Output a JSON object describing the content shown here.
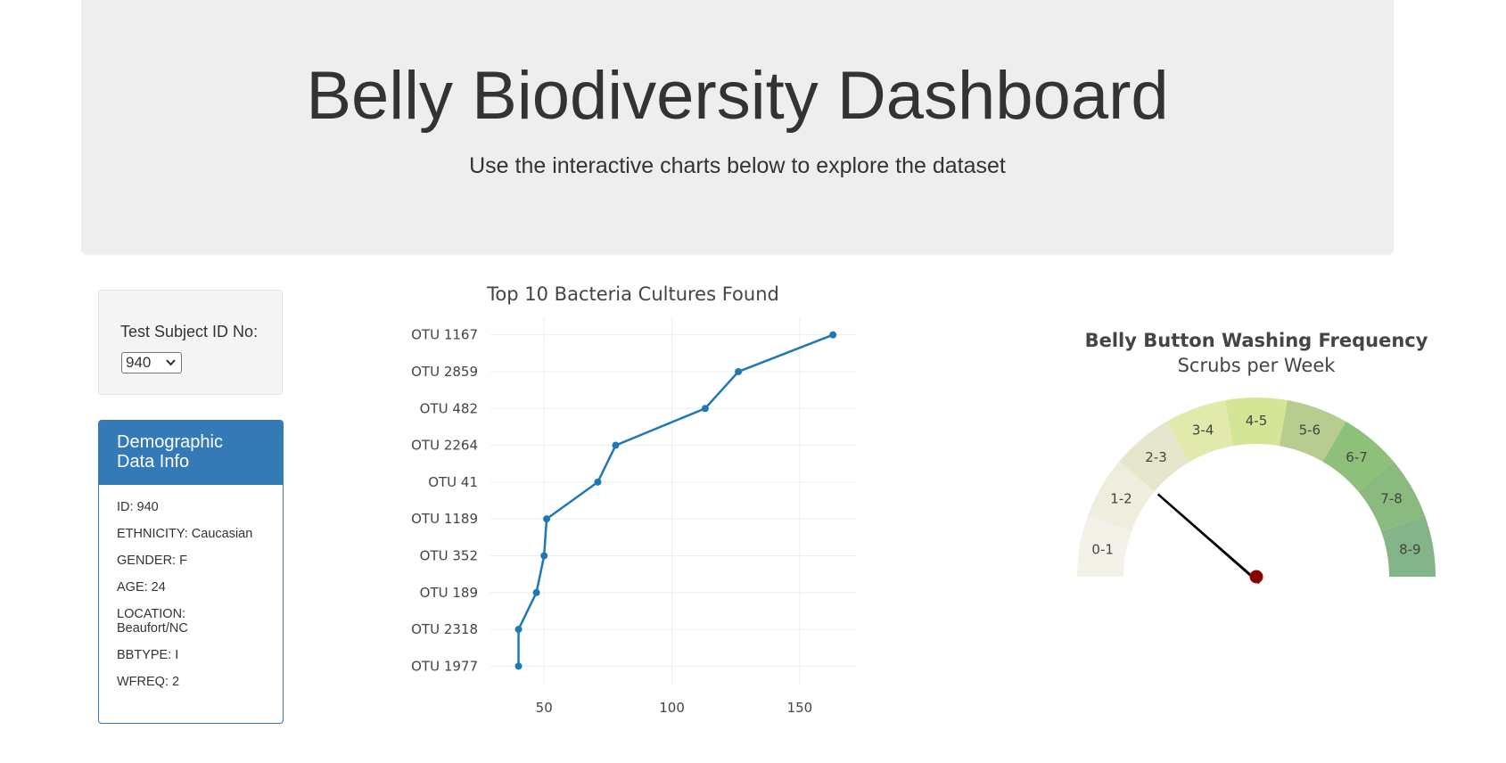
{
  "header": {
    "title": "Belly Biodiversity Dashboard",
    "subtitle": "Use the interactive charts below to explore the dataset"
  },
  "selector": {
    "label": "Test Subject ID No:",
    "selected_value": "940"
  },
  "demographics": {
    "title": "Demographic Data Info",
    "rows": [
      "ID: 940",
      "ETHNICITY: Caucasian",
      "GENDER: F",
      "AGE: 24",
      "LOCATION: Beaufort/NC",
      "BBTYPE: I",
      "WFREQ: 2"
    ]
  },
  "colors": {
    "accent": "#337ab7",
    "series": "#1f77b4"
  },
  "chart_data": [
    {
      "type": "line",
      "title": "Top 10 Bacteria Cultures Found",
      "categories": [
        "OTU 1167",
        "OTU 2859",
        "OTU 482",
        "OTU 2264",
        "OTU 41",
        "OTU 1189",
        "OTU 352",
        "OTU 189",
        "OTU 2318",
        "OTU 1977"
      ],
      "values": [
        163,
        126,
        113,
        78,
        71,
        51,
        50,
        47,
        40,
        40
      ],
      "x_ticks": [
        50,
        100,
        150
      ],
      "xlim": [
        29,
        172
      ],
      "grid": true
    },
    {
      "type": "gauge",
      "title": "Belly Button Washing Frequency",
      "subtitle": "Scrubs per Week",
      "value": 2,
      "range": [
        0,
        9
      ],
      "sectors": [
        "0-1",
        "1-2",
        "2-3",
        "3-4",
        "4-5",
        "5-6",
        "6-7",
        "7-8",
        "8-9"
      ],
      "sector_colors": [
        "#f4f1e9",
        "#efedde",
        "#e5e6cc",
        "#e1e9ad",
        "#d5e596",
        "#b7cd8f",
        "#8dc078",
        "#8bba7f",
        "#84b589"
      ]
    }
  ]
}
